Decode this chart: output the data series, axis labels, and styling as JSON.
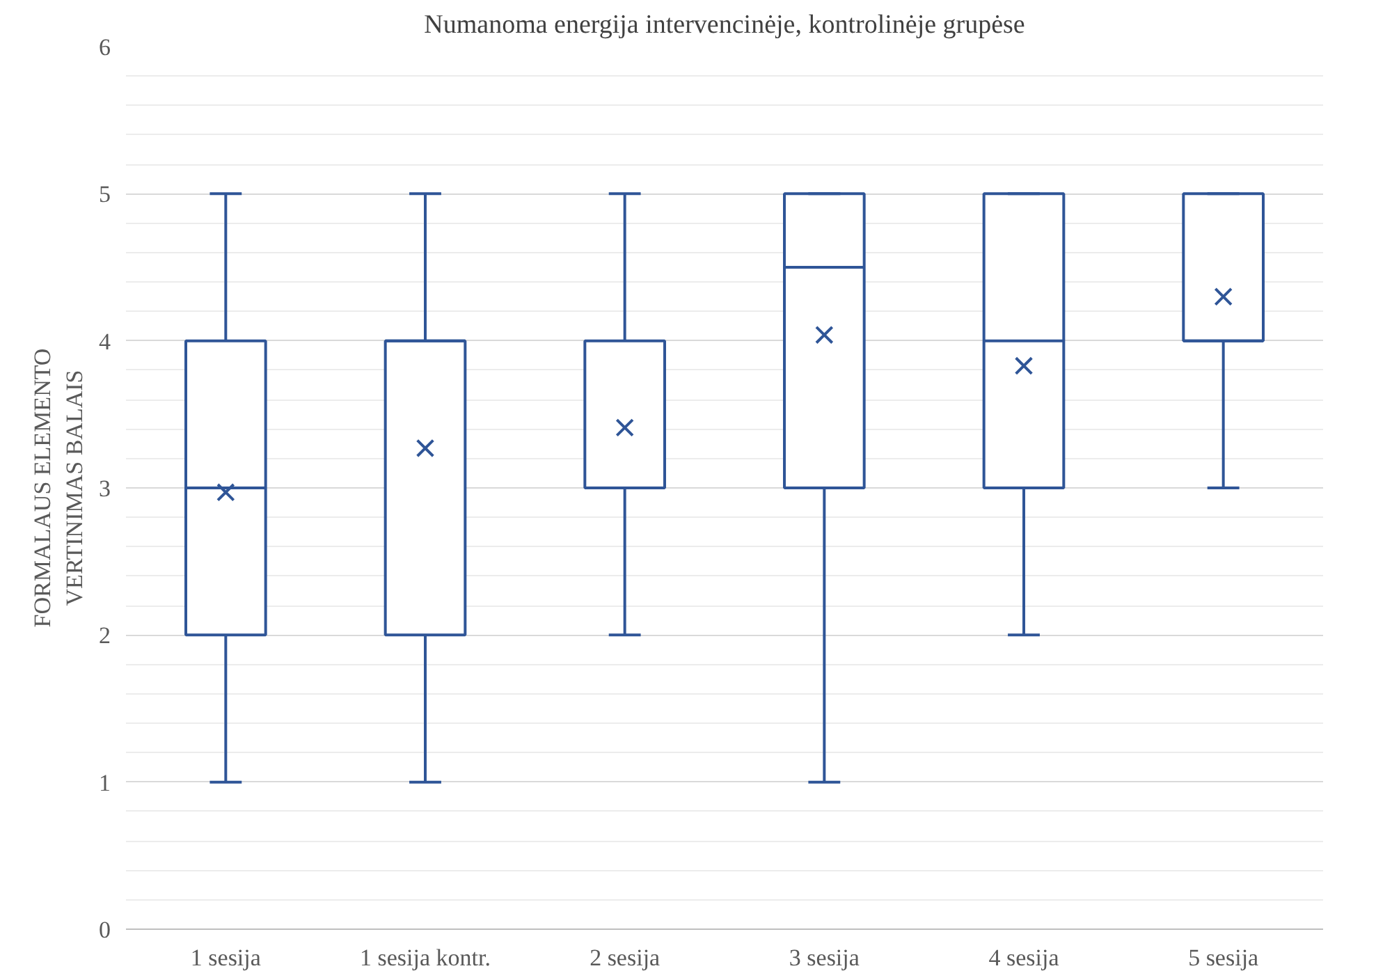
{
  "chart_data": {
    "type": "box",
    "title": "Numanoma energija intervencinėje, kontrolinėje grupėse",
    "ylabel": "FORMALAUS ELEMENTO\nVERTINIMAS BALAIS",
    "categories": [
      "1 sesija",
      "1 sesija kontr.",
      "2 sesija",
      "3 sesija",
      "4 sesija",
      "5 sesija"
    ],
    "color": "#2f5597",
    "ylim": [
      0,
      6
    ],
    "yticks": [
      0,
      1,
      2,
      3,
      4,
      5,
      6
    ],
    "grid": "y",
    "marker": "cross",
    "boxes": [
      {
        "low": 1,
        "q1": 2,
        "median": 3,
        "q3": 4,
        "high": 5,
        "mean": 2.97
      },
      {
        "low": 1,
        "q1": 2,
        "median": 4,
        "q3": 4,
        "high": 5,
        "mean": 3.27
      },
      {
        "low": 2,
        "q1": 3,
        "median": 3,
        "q3": 4,
        "high": 5,
        "mean": 3.41
      },
      {
        "low": 1,
        "q1": 3,
        "median": 4.5,
        "q3": 5,
        "high": 5,
        "mean": 4.04
      },
      {
        "low": 2,
        "q1": 3,
        "median": 4,
        "q3": 5,
        "high": 5,
        "mean": 3.83
      },
      {
        "low": 3,
        "q1": 4,
        "median": 4,
        "q3": 5,
        "high": 5,
        "mean": 4.3
      }
    ]
  }
}
